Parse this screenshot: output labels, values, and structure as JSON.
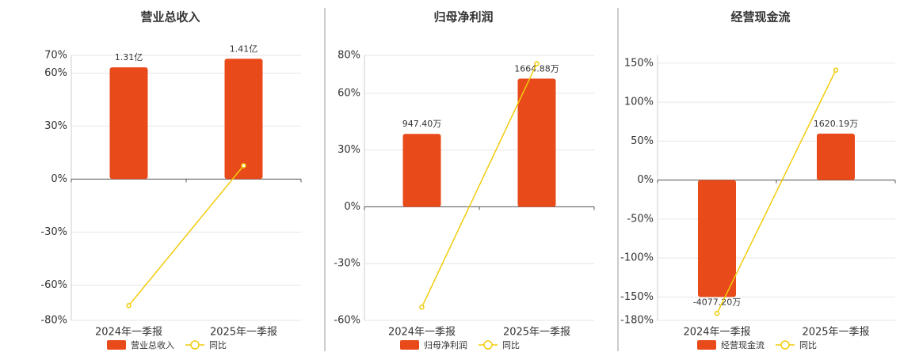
{
  "chart_data": [
    {
      "type": "combo",
      "title": "营业总收入",
      "categories": [
        "2024年一季报",
        "2025年一季报"
      ],
      "ylim": [
        -80,
        70
      ],
      "yticks": [
        {
          "value": 70,
          "label": "70%"
        },
        {
          "value": 60,
          "label": "60%"
        },
        {
          "value": 30,
          "label": "30%"
        },
        {
          "value": 0,
          "label": "0%"
        },
        {
          "value": -30,
          "label": "-30%"
        },
        {
          "value": -60,
          "label": "-60%"
        },
        {
          "value": -80,
          "label": "-80%"
        }
      ],
      "y2lim": [
        -1.66,
        1.45
      ],
      "grid": true,
      "series": [
        {
          "name": "营业总收入",
          "type": "bar",
          "axis": "y2",
          "color": "#e84a1a",
          "values": [
            1.31,
            1.41
          ],
          "value_labels": [
            "1.31亿",
            "1.41亿"
          ]
        },
        {
          "name": "同比",
          "type": "line",
          "color": "#f2cc0c",
          "values": [
            -71.6,
            7.6
          ]
        }
      ]
    },
    {
      "type": "combo",
      "title": "归母净利润",
      "categories": [
        "2024年一季报",
        "2025年一季报"
      ],
      "ylim": [
        -60,
        80
      ],
      "yticks": [
        {
          "value": 80,
          "label": "80%"
        },
        {
          "value": 60,
          "label": "60%"
        },
        {
          "value": 30,
          "label": "30%"
        },
        {
          "value": 0,
          "label": "0%"
        },
        {
          "value": -30,
          "label": "-30%"
        },
        {
          "value": -60,
          "label": "-60%"
        }
      ],
      "y2lim": [
        -1475,
        1967
      ],
      "grid": true,
      "series": [
        {
          "name": "归母净利润",
          "type": "bar",
          "axis": "y2",
          "color": "#e84a1a",
          "values": [
            947.4,
            1664.88
          ],
          "value_labels": [
            "947.40万",
            "1664.88万"
          ]
        },
        {
          "name": "同比",
          "type": "line",
          "color": "#f2cc0c",
          "values": [
            -53,
            75.6
          ]
        }
      ]
    },
    {
      "type": "combo",
      "title": "经营现金流",
      "categories": [
        "2024年一季报",
        "2025年一季报"
      ],
      "ylim": [
        -180,
        160
      ],
      "yticks": [
        {
          "value": 150,
          "label": "150%"
        },
        {
          "value": 100,
          "label": "100%"
        },
        {
          "value": 50,
          "label": "50%"
        },
        {
          "value": 0,
          "label": "0%"
        },
        {
          "value": -50,
          "label": "-50%"
        },
        {
          "value": -100,
          "label": "-100%"
        },
        {
          "value": -150,
          "label": "-150%"
        },
        {
          "value": -180,
          "label": "-180%"
        }
      ],
      "y2lim": [
        -4893,
        4349
      ],
      "grid": true,
      "series": [
        {
          "name": "经营现金流",
          "type": "bar",
          "axis": "y2",
          "color": "#e84a1a",
          "values": [
            -4077.2,
            1620.19
          ],
          "value_labels": [
            "-4077.20万",
            "1620.19万"
          ]
        },
        {
          "name": "同比",
          "type": "line",
          "color": "#f2cc0c",
          "values": [
            -171,
            141
          ]
        }
      ]
    }
  ]
}
